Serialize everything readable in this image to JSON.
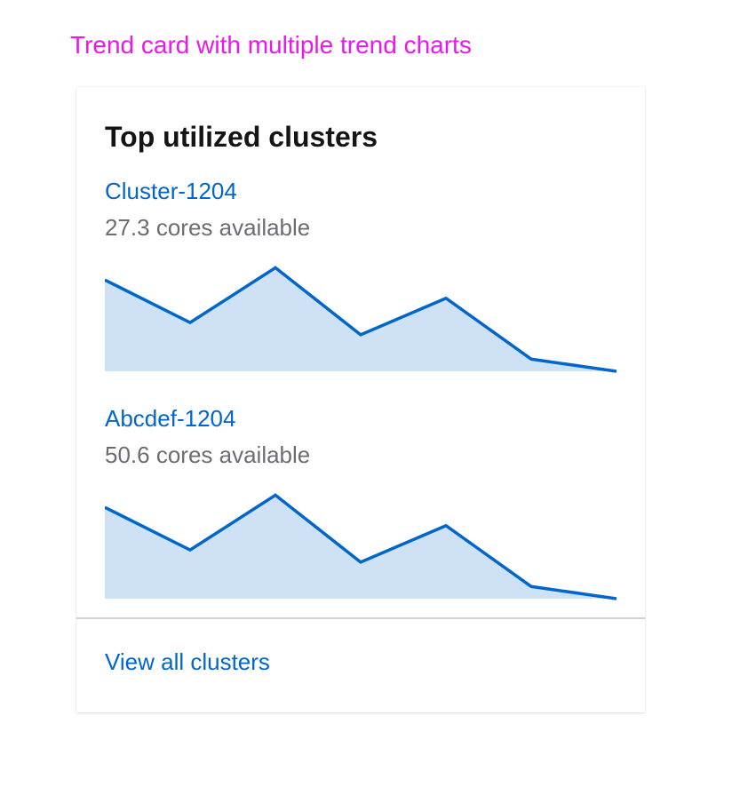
{
  "caption": "Trend card with multiple trend charts",
  "card": {
    "title": "Top utilized clusters",
    "trends": [
      {
        "name": "Cluster-1204",
        "subtitle": "27.3 cores available"
      },
      {
        "name": "Abcdef-1204",
        "subtitle": "50.6 cores available"
      }
    ],
    "footer_link": "View all clusters"
  },
  "colors": {
    "caption": "#ec17ec",
    "link": "#0066cc",
    "line": "#0066cc",
    "area": "#cfe2f5",
    "muted_text": "#6a6e73"
  },
  "chart_data": [
    {
      "type": "area",
      "x": [
        1,
        2,
        3,
        4,
        5,
        6,
        7
      ],
      "series": [
        {
          "values": [
            6,
            3.2,
            6.8,
            2.4,
            4.8,
            0.8,
            0
          ]
        }
      ],
      "ylim": [
        0,
        7
      ],
      "grid": false
    },
    {
      "type": "area",
      "x": [
        1,
        2,
        3,
        4,
        5,
        6,
        7
      ],
      "series": [
        {
          "values": [
            6,
            3.2,
            6.8,
            2.4,
            4.8,
            0.8,
            0
          ]
        }
      ],
      "ylim": [
        0,
        7
      ],
      "grid": false
    }
  ]
}
